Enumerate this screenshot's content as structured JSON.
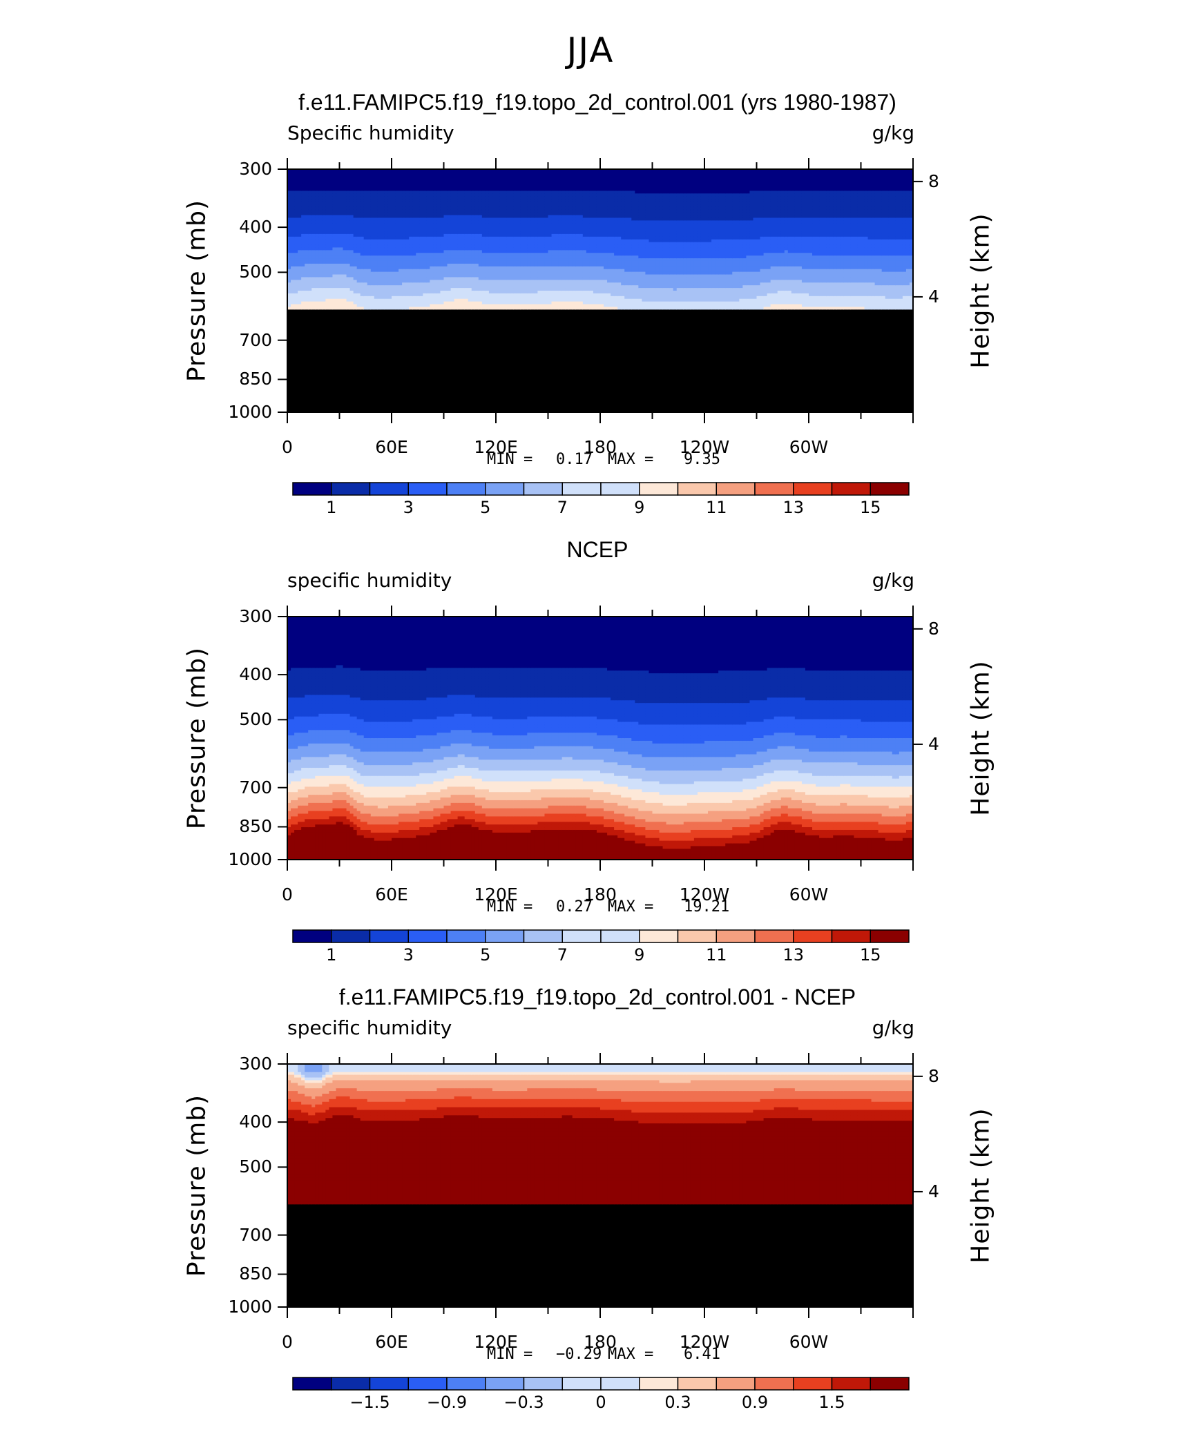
{
  "page_title": "JJA",
  "panels": [
    {
      "title": "f.e11.FAMIPC5.f19_f19.topo_2d_control.001 (yrs 1980-1987)",
      "left_label": "Specific humidity",
      "right_label": "g/kg",
      "ylabel": "Pressure (mb)",
      "ylabel_right": "Height (km)",
      "min_label": "MIN =",
      "min_value": "0.17",
      "max_label": "MAX =",
      "max_value": "9.35",
      "colorbar_labels": [
        "1",
        "3",
        "5",
        "7",
        "9",
        "11",
        "13",
        "15"
      ],
      "masked": true
    },
    {
      "title": "NCEP",
      "left_label": "specific humidity",
      "right_label": "g/kg",
      "ylabel": "Pressure (mb)",
      "ylabel_right": "Height (km)",
      "min_label": "MIN =",
      "min_value": "0.27",
      "max_label": "MAX =",
      "max_value": "19.21",
      "colorbar_labels": [
        "1",
        "3",
        "5",
        "7",
        "9",
        "11",
        "13",
        "15"
      ],
      "masked": false
    },
    {
      "title": "f.e11.FAMIPC5.f19_f19.topo_2d_control.001 - NCEP",
      "left_label": "specific humidity",
      "right_label": "g/kg",
      "ylabel": "Pressure (mb)",
      "ylabel_right": "Height (km)",
      "min_label": "MIN =",
      "min_value": "−0.29",
      "max_label": "MAX =",
      "max_value": "6.41",
      "colorbar_labels": [
        "−1.5",
        "−0.9",
        "−0.3",
        "0",
        "0.3",
        "0.9",
        "1.5"
      ],
      "masked": true
    }
  ],
  "axes": {
    "pressure_ticks": [
      "300",
      "400",
      "500",
      "700",
      "850",
      "1000"
    ],
    "height_ticks": [
      "8",
      "4"
    ],
    "x_ticks": [
      "0",
      "60E",
      "120E",
      "180",
      "120W",
      "60W"
    ]
  },
  "colors": {
    "palette": [
      "#000080",
      "#0a2ca8",
      "#1444d8",
      "#2a5ef5",
      "#4d80f5",
      "#7aa2f5",
      "#a8c2f5",
      "#d0e0fa",
      "#fde8d8",
      "#fac8ac",
      "#f5a080",
      "#f07050",
      "#e84020",
      "#c01808",
      "#8b0000"
    ],
    "mask": "#000000"
  },
  "chart_data": [
    {
      "type": "contour",
      "title": "f.e11.FAMIPC5.f19_f19.topo_2d_control.001 (yrs 1980-1987)",
      "variable": "Specific humidity",
      "units": "g/kg",
      "x_range_deg": [
        0,
        360
      ],
      "pressure_range_mb": [
        1000,
        300
      ],
      "mask_below_mb": 600,
      "min": 0.17,
      "max": 9.35,
      "levels": [
        1,
        3,
        5,
        7,
        9,
        11,
        13,
        15
      ],
      "q_top": 0.6,
      "q_mask": 8.0
    },
    {
      "type": "contour",
      "title": "NCEP",
      "variable": "specific humidity",
      "units": "g/kg",
      "x_range_deg": [
        0,
        360
      ],
      "pressure_range_mb": [
        1000,
        300
      ],
      "min": 0.27,
      "max": 19.21,
      "levels": [
        1,
        3,
        5,
        7,
        9,
        11,
        13,
        15
      ],
      "q_top": 0.4,
      "q_sfc": 17.0
    },
    {
      "type": "contour",
      "title": "f.e11.FAMIPC5.f19_f19.topo_2d_control.001 - NCEP",
      "variable": "specific humidity",
      "units": "g/kg",
      "x_range_deg": [
        0,
        360
      ],
      "pressure_range_mb": [
        1000,
        300
      ],
      "mask_below_mb": 600,
      "min": -0.29,
      "max": 6.41,
      "levels": [
        -1.5,
        -0.9,
        -0.3,
        0,
        0.3,
        0.9,
        1.5
      ],
      "d_top": 0.0,
      "d_deep": 2.5
    }
  ]
}
